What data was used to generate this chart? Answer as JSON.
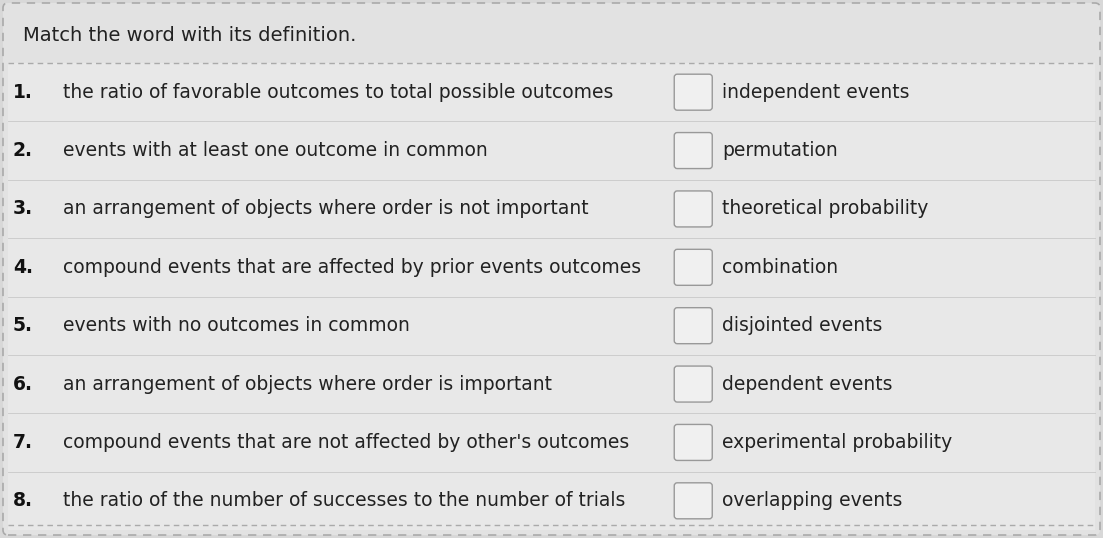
{
  "title": "Match the word with its definition.",
  "background_color": "#d8d8d8",
  "card_color": "#e8e8e8",
  "inner_color": "#e8e8e8",
  "border_color": "#b0b0b0",
  "text_color": "#222222",
  "number_color": "#111111",
  "title_fontsize": 14,
  "item_fontsize": 13.5,
  "definitions_numbered": [
    [
      "1.",
      "the ratio of favorable outcomes to total possible outcomes"
    ],
    [
      "2.",
      "events with at least one outcome in common"
    ],
    [
      "3.",
      "an arrangement of objects where order is not important"
    ],
    [
      "4.",
      "compound events that are affected by prior events outcomes"
    ],
    [
      "5.",
      "events with no outcomes in common"
    ],
    [
      "6.",
      "an arrangement of objects where order is important"
    ],
    [
      "7.",
      "compound events that are not affected by other's outcomes"
    ],
    [
      "8.",
      "the ratio of the number of successes to the number of trials"
    ]
  ],
  "terms": [
    "independent events",
    "permutation",
    "theoretical probability",
    "combination",
    "disjointed events",
    "dependent events",
    "experimental probability",
    "overlapping events"
  ],
  "fig_width": 11.03,
  "fig_height": 5.38,
  "dpi": 100
}
